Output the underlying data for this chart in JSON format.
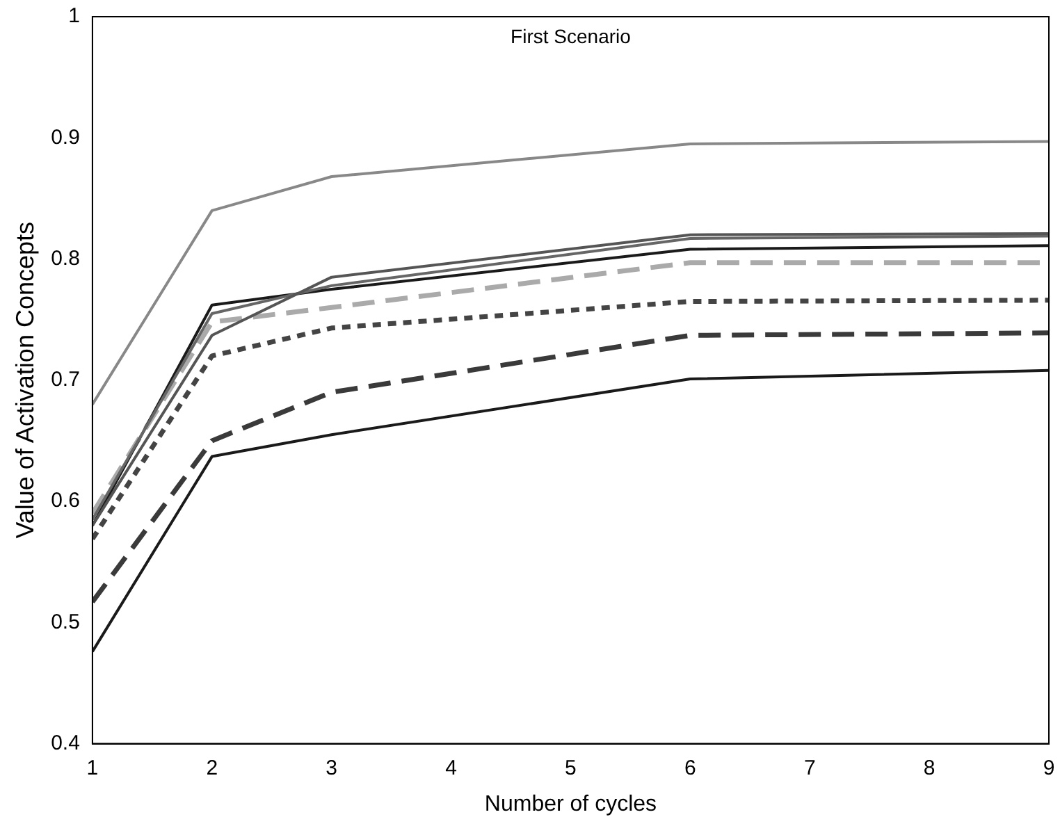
{
  "chart_data": {
    "type": "line",
    "title": "First Scenario",
    "xlabel": "Number of cycles",
    "ylabel": "Value of Activation Concepts",
    "x": [
      1,
      2,
      3,
      6,
      9
    ],
    "xlim": [
      1,
      9
    ],
    "xticks": [
      1,
      2,
      3,
      4,
      5,
      6,
      7,
      8,
      9
    ],
    "ylim": [
      0.4,
      1
    ],
    "yticks": [
      0.4,
      0.5,
      0.6,
      0.7,
      0.8,
      0.9,
      1
    ],
    "grid": false,
    "legend": false,
    "marker": "none",
    "series": [
      {
        "color": "#888888",
        "line_style": "solid",
        "values": [
          0.68,
          0.84,
          0.868,
          0.895,
          0.897
        ]
      },
      {
        "color": "#555555",
        "line_style": "solid",
        "values": [
          0.58,
          0.737,
          0.785,
          0.82,
          0.821
        ]
      },
      {
        "color": "#666666",
        "line_style": "solid",
        "values": [
          0.585,
          0.755,
          0.778,
          0.817,
          0.819
        ]
      },
      {
        "color": "#1a1a1a",
        "line_style": "solid",
        "values": [
          0.58,
          0.762,
          0.775,
          0.808,
          0.811
        ]
      },
      {
        "color": "#aaaaaa",
        "line_style": "dashed",
        "values": [
          0.59,
          0.748,
          0.76,
          0.797,
          0.797
        ]
      },
      {
        "color": "#444444",
        "line_style": "dotted",
        "values": [
          0.569,
          0.72,
          0.743,
          0.765,
          0.766
        ]
      },
      {
        "color": "#3a3a3a",
        "line_style": "dashed",
        "values": [
          0.517,
          0.65,
          0.69,
          0.737,
          0.739
        ]
      },
      {
        "color": "#1a1a1a",
        "line_style": "solid",
        "values": [
          0.476,
          0.637,
          0.655,
          0.701,
          0.708
        ]
      }
    ]
  }
}
